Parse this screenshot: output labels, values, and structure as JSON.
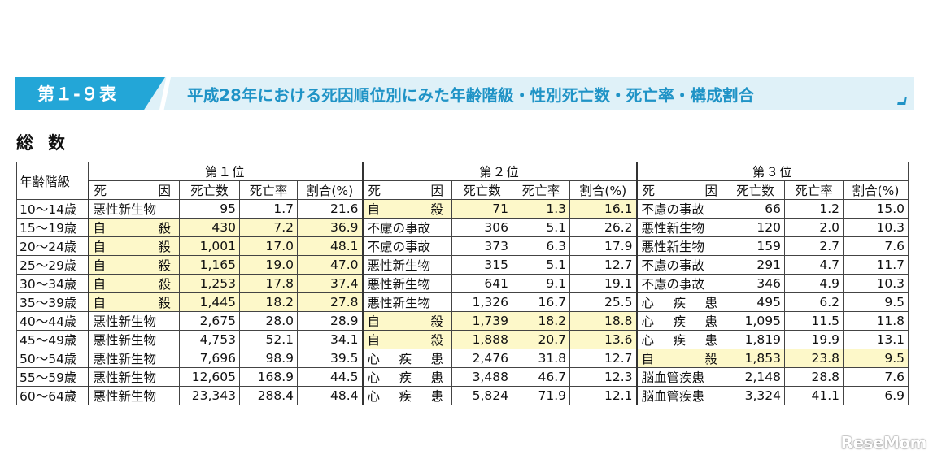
{
  "banner": {
    "label": "第１-９表",
    "title": "平成28年における死因順位別にみた年齢階級・性別死亡数・死亡率・構成割合"
  },
  "section_title": "総数",
  "table": {
    "age_header": "年齢階級",
    "ranks": [
      "第１位",
      "第２位",
      "第３位"
    ],
    "sub_headers": {
      "cause": "死因",
      "deaths": "死亡数",
      "rate": "死亡率",
      "share": "割合(%)"
    },
    "rows": [
      {
        "age": "10〜14歳",
        "r1": {
          "cause": "悪性新生物",
          "deaths": "95",
          "rate": "1.7",
          "share": "21.6"
        },
        "r2": {
          "cause": "自殺",
          "deaths": "71",
          "rate": "1.3",
          "share": "16.1"
        },
        "r3": {
          "cause": "不慮の事故",
          "deaths": "66",
          "rate": "1.2",
          "share": "15.0"
        }
      },
      {
        "age": "15〜19歳",
        "r1": {
          "cause": "自殺",
          "deaths": "430",
          "rate": "7.2",
          "share": "36.9"
        },
        "r2": {
          "cause": "不慮の事故",
          "deaths": "306",
          "rate": "5.1",
          "share": "26.2"
        },
        "r3": {
          "cause": "悪性新生物",
          "deaths": "120",
          "rate": "2.0",
          "share": "10.3"
        }
      },
      {
        "age": "20〜24歳",
        "r1": {
          "cause": "自殺",
          "deaths": "1,001",
          "rate": "17.0",
          "share": "48.1"
        },
        "r2": {
          "cause": "不慮の事故",
          "deaths": "373",
          "rate": "6.3",
          "share": "17.9"
        },
        "r3": {
          "cause": "悪性新生物",
          "deaths": "159",
          "rate": "2.7",
          "share": "7.6"
        }
      },
      {
        "age": "25〜29歳",
        "r1": {
          "cause": "自殺",
          "deaths": "1,165",
          "rate": "19.0",
          "share": "47.0"
        },
        "r2": {
          "cause": "悪性新生物",
          "deaths": "315",
          "rate": "5.1",
          "share": "12.7"
        },
        "r3": {
          "cause": "不慮の事故",
          "deaths": "291",
          "rate": "4.7",
          "share": "11.7"
        }
      },
      {
        "age": "30〜34歳",
        "r1": {
          "cause": "自殺",
          "deaths": "1,253",
          "rate": "17.8",
          "share": "37.4"
        },
        "r2": {
          "cause": "悪性新生物",
          "deaths": "641",
          "rate": "9.1",
          "share": "19.1"
        },
        "r3": {
          "cause": "不慮の事故",
          "deaths": "346",
          "rate": "4.9",
          "share": "10.3"
        }
      },
      {
        "age": "35〜39歳",
        "r1": {
          "cause": "自殺",
          "deaths": "1,445",
          "rate": "18.2",
          "share": "27.8"
        },
        "r2": {
          "cause": "悪性新生物",
          "deaths": "1,326",
          "rate": "16.7",
          "share": "25.5"
        },
        "r3": {
          "cause": "心疾患",
          "deaths": "495",
          "rate": "6.2",
          "share": "9.5"
        }
      },
      {
        "age": "40〜44歳",
        "r1": {
          "cause": "悪性新生物",
          "deaths": "2,675",
          "rate": "28.0",
          "share": "28.9"
        },
        "r2": {
          "cause": "自殺",
          "deaths": "1,739",
          "rate": "18.2",
          "share": "18.8"
        },
        "r3": {
          "cause": "心疾患",
          "deaths": "1,095",
          "rate": "11.5",
          "share": "11.8"
        }
      },
      {
        "age": "45〜49歳",
        "r1": {
          "cause": "悪性新生物",
          "deaths": "4,753",
          "rate": "52.1",
          "share": "34.1"
        },
        "r2": {
          "cause": "自殺",
          "deaths": "1,888",
          "rate": "20.7",
          "share": "13.6"
        },
        "r3": {
          "cause": "心疾患",
          "deaths": "1,819",
          "rate": "19.9",
          "share": "13.1"
        }
      },
      {
        "age": "50〜54歳",
        "r1": {
          "cause": "悪性新生物",
          "deaths": "7,696",
          "rate": "98.9",
          "share": "39.5"
        },
        "r2": {
          "cause": "心疾患",
          "deaths": "2,476",
          "rate": "31.8",
          "share": "12.7"
        },
        "r3": {
          "cause": "自殺",
          "deaths": "1,853",
          "rate": "23.8",
          "share": "9.5"
        }
      },
      {
        "age": "55〜59歳",
        "r1": {
          "cause": "悪性新生物",
          "deaths": "12,605",
          "rate": "168.9",
          "share": "44.5"
        },
        "r2": {
          "cause": "心疾患",
          "deaths": "3,488",
          "rate": "46.7",
          "share": "12.3"
        },
        "r3": {
          "cause": "脳血管疾患",
          "deaths": "2,148",
          "rate": "28.8",
          "share": "7.6"
        }
      },
      {
        "age": "60〜64歳",
        "r1": {
          "cause": "悪性新生物",
          "deaths": "23,343",
          "rate": "288.4",
          "share": "48.4"
        },
        "r2": {
          "cause": "心疾患",
          "deaths": "5,824",
          "rate": "71.9",
          "share": "12.1"
        },
        "r3": {
          "cause": "脳血管疾患",
          "deaths": "3,324",
          "rate": "41.1",
          "share": "6.9"
        }
      }
    ],
    "highlight_cause": "自殺",
    "highlight_color": "#fdf8c9"
  },
  "watermark": "ReseMom",
  "colors": {
    "banner_label_bg": "#23a6d7",
    "banner_bg": "#dff1f8",
    "banner_title": "#1f93c6"
  }
}
